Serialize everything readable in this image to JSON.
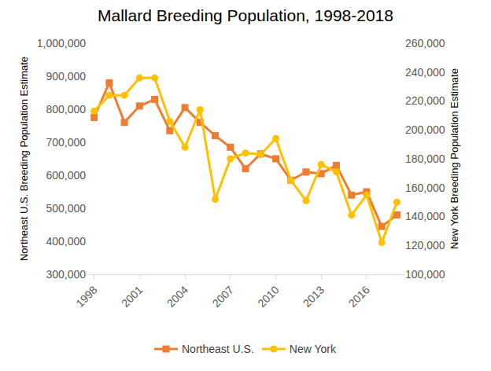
{
  "chart_data": {
    "type": "line",
    "title": "Mallard Breeding Population, 1998-2018",
    "y_label": "Northeast U.S. Breeding Population Estimate",
    "y2_label": "New York Breeding Population Estimate",
    "x": [
      1998,
      1999,
      2000,
      2001,
      2002,
      2003,
      2004,
      2005,
      2006,
      2007,
      2008,
      2009,
      2010,
      2011,
      2012,
      2013,
      2014,
      2015,
      2016,
      2017,
      2018
    ],
    "xlim": [
      1997.5,
      2018.5
    ],
    "xticks": [
      1998,
      2001,
      2004,
      2007,
      2010,
      2013,
      2016
    ],
    "ylim": [
      300000,
      1000000
    ],
    "yticks": [
      {
        "value": 300000,
        "label": "300,000"
      },
      {
        "value": 400000,
        "label": "400,000"
      },
      {
        "value": 500000,
        "label": "500,000"
      },
      {
        "value": 600000,
        "label": "600,000"
      },
      {
        "value": 700000,
        "label": "700,000"
      },
      {
        "value": 800000,
        "label": "800,000"
      },
      {
        "value": 900000,
        "label": "900,000"
      },
      {
        "value": 1000000,
        "label": "1,000,000"
      }
    ],
    "y2lim": [
      100000,
      260000
    ],
    "y2ticks": [
      {
        "value": 100000,
        "label": "100,000"
      },
      {
        "value": 120000,
        "label": "120,000"
      },
      {
        "value": 140000,
        "label": "140,000"
      },
      {
        "value": 160000,
        "label": "160,000"
      },
      {
        "value": 180000,
        "label": "180,000"
      },
      {
        "value": 200000,
        "label": "200,000"
      },
      {
        "value": 220000,
        "label": "220,000"
      },
      {
        "value": 240000,
        "label": "240,000"
      },
      {
        "value": 260000,
        "label": "260,000"
      }
    ],
    "grid": false,
    "legend": "bottom",
    "series": [
      {
        "name": "Northeast U.S.",
        "color": "#ed7d31",
        "marker": "square",
        "line_style": "solid",
        "values": [
          775000,
          880000,
          760000,
          810000,
          830000,
          735000,
          805000,
          760000,
          720000,
          685000,
          620000,
          665000,
          650000,
          585000,
          610000,
          605000,
          630000,
          540000,
          550000,
          445000,
          480000
        ]
      },
      {
        "name": "New York",
        "color": "#ffc000",
        "marker": "circle",
        "line_style": "solid",
        "axis": "y2",
        "values": [
          213000,
          224000,
          224000,
          236000,
          236000,
          206000,
          188000,
          214000,
          152000,
          180000,
          184000,
          183000,
          194000,
          165000,
          151000,
          176000,
          171000,
          141000,
          155000,
          122000,
          150000
        ]
      }
    ]
  }
}
